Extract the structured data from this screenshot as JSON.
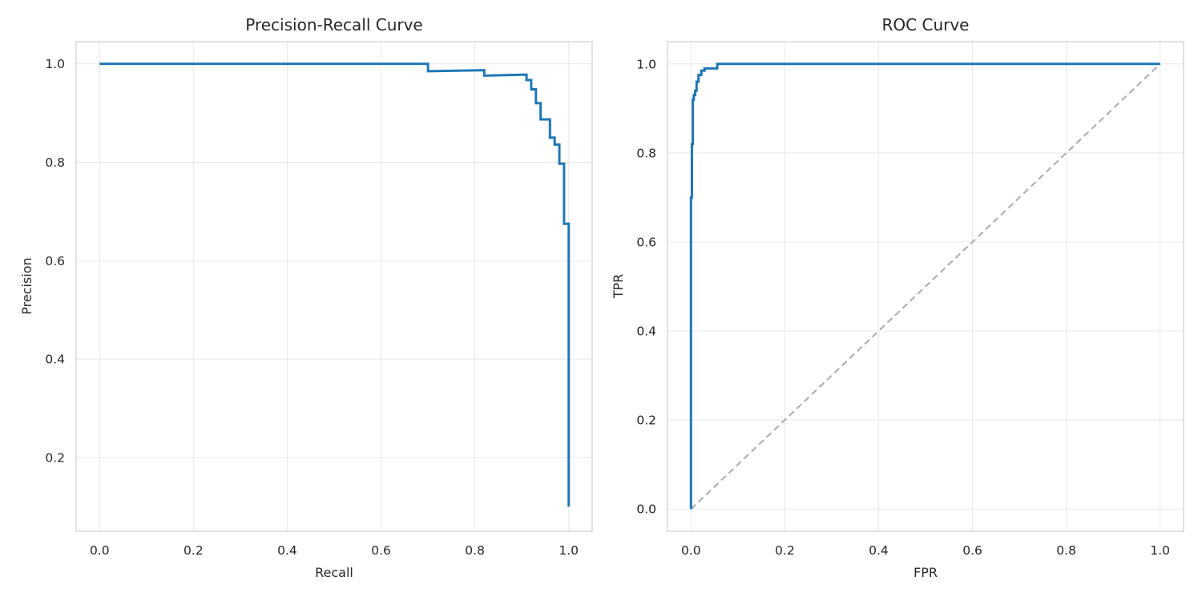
{
  "colors": {
    "curve": "#1f77b4",
    "chance": "#aaaaaa",
    "grid": "#e8e8e8",
    "frame": "#cfcfcf"
  },
  "chart_data": [
    {
      "type": "line",
      "title": "Precision-Recall Curve",
      "xlabel": "Recall",
      "ylabel": "Precision",
      "xlim": [
        -0.05,
        1.05
      ],
      "ylim": [
        0.05,
        1.045
      ],
      "xticks": [
        0.0,
        0.2,
        0.4,
        0.6,
        0.8,
        1.0
      ],
      "xtick_labels": [
        "0.0",
        "0.2",
        "0.4",
        "0.6",
        "0.8",
        "1.0"
      ],
      "yticks": [
        0.2,
        0.4,
        0.6,
        0.8,
        1.0
      ],
      "ytick_labels": [
        "0.2",
        "0.4",
        "0.6",
        "0.8",
        "1.0"
      ],
      "grid": true,
      "series": [
        {
          "step": "post",
          "x": [
            0.0,
            0.7,
            0.7,
            0.82,
            0.82,
            0.91,
            0.91,
            0.92,
            0.92,
            0.93,
            0.93,
            0.94,
            0.94,
            0.96,
            0.96,
            0.97,
            0.97,
            0.98,
            0.98,
            0.99,
            0.99,
            1.0,
            1.0
          ],
          "y": [
            1.0,
            1.0,
            0.985,
            0.987,
            0.976,
            0.978,
            0.967,
            0.967,
            0.948,
            0.948,
            0.92,
            0.92,
            0.887,
            0.887,
            0.85,
            0.85,
            0.836,
            0.836,
            0.797,
            0.797,
            0.675,
            0.675,
            0.1
          ]
        }
      ]
    },
    {
      "type": "line",
      "title": "ROC Curve",
      "xlabel": "FPR",
      "ylabel": "TPR",
      "xlim": [
        -0.05,
        1.05
      ],
      "ylim": [
        -0.05,
        1.05
      ],
      "xticks": [
        0.0,
        0.2,
        0.4,
        0.6,
        0.8,
        1.0
      ],
      "xtick_labels": [
        "0.0",
        "0.2",
        "0.4",
        "0.6",
        "0.8",
        "1.0"
      ],
      "yticks": [
        0.0,
        0.2,
        0.4,
        0.6,
        0.8,
        1.0
      ],
      "ytick_labels": [
        "0.0",
        "0.2",
        "0.4",
        "0.6",
        "0.8",
        "1.0"
      ],
      "grid": true,
      "series": [
        {
          "x": [
            0.0,
            0.0,
            0.002,
            0.002,
            0.004,
            0.004,
            0.006,
            0.006,
            0.009,
            0.009,
            0.012,
            0.012,
            0.016,
            0.016,
            0.022,
            0.022,
            0.029,
            0.029,
            0.056,
            0.056,
            1.0
          ],
          "y": [
            0.0,
            0.7,
            0.7,
            0.82,
            0.82,
            0.92,
            0.92,
            0.93,
            0.93,
            0.94,
            0.94,
            0.96,
            0.96,
            0.975,
            0.975,
            0.985,
            0.985,
            0.99,
            0.99,
            1.0,
            1.0
          ]
        },
        {
          "x": [
            0.0,
            1.0
          ],
          "y": [
            0.0,
            1.0
          ]
        }
      ]
    }
  ]
}
